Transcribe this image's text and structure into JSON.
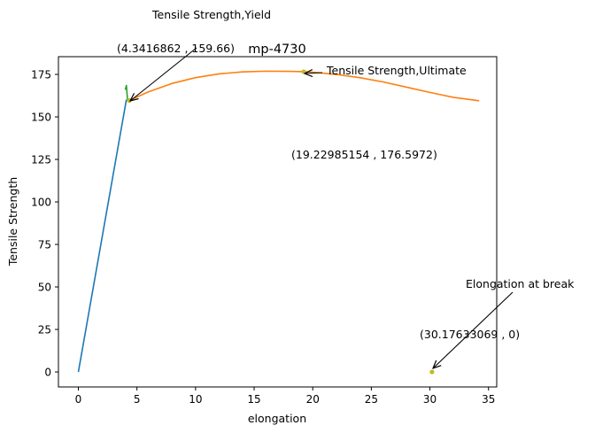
{
  "chart_data": {
    "type": "line",
    "title": "mp-4730",
    "xlabel": "elongation",
    "ylabel": "Tensile Strength",
    "xlim": [
      -1.7,
      35.7
    ],
    "ylim": [
      -8.83,
      185.43
    ],
    "grid": false,
    "legend": "none",
    "xticks": [
      0,
      5,
      10,
      15,
      20,
      25,
      30,
      35
    ],
    "yticks": [
      0,
      25,
      50,
      75,
      100,
      125,
      150,
      175
    ],
    "series": [
      {
        "color": "#1f77b4",
        "x": [
          0,
          4.1
        ],
        "y": [
          0,
          160.2
        ]
      },
      {
        "color": "#2ca02c",
        "x": [
          4.0,
          4.1,
          4.2
        ],
        "y": [
          166.0,
          168.5,
          159.66
        ]
      },
      {
        "color": "#ff7f0e",
        "x": [
          4.34,
          6,
          8,
          10,
          12,
          14,
          16,
          18,
          19.23,
          20,
          22,
          24,
          26,
          28,
          30,
          32,
          34.2
        ],
        "y": [
          159.66,
          164.8,
          169.7,
          173.1,
          175.3,
          176.5,
          176.9,
          176.8,
          176.6,
          176.3,
          175.0,
          173.1,
          170.6,
          167.5,
          164.4,
          161.5,
          159.5
        ]
      }
    ],
    "points": [
      {
        "x": 4.3416862,
        "y": 159.66,
        "color": "#bcbd22"
      },
      {
        "x": 19.22985154,
        "y": 176.5972,
        "color": "#bcbd22"
      },
      {
        "x": 30.17633069,
        "y": 0,
        "color": "#bcbd22"
      }
    ],
    "annotations": [
      {
        "label": "Tensile Strength,Yield",
        "coord": "(4.3416862 , 159.66)",
        "x": 4.3416862,
        "y": 159.66
      },
      {
        "label": "Tensile Strength,Ultimate",
        "coord": "(19.22985154 , 176.5972)",
        "x": 19.22985154,
        "y": 176.5972
      },
      {
        "label": "Elongation at break",
        "coord": "(30.17633069 , 0)",
        "x": 30.17633069,
        "y": 0
      }
    ]
  }
}
